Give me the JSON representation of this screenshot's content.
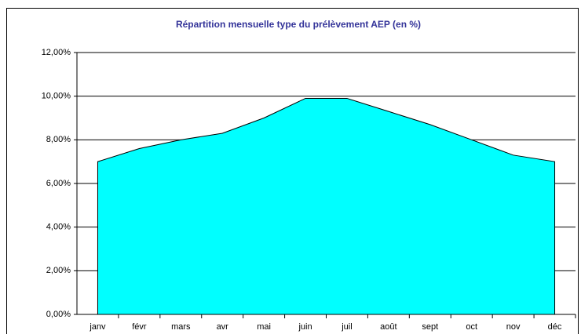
{
  "chart_data": {
    "type": "area",
    "title": "Répartition mensuelle type du prélèvement AEP (en %)",
    "categories": [
      "janv",
      "févr",
      "mars",
      "avr",
      "mai",
      "juin",
      "juil",
      "août",
      "sept",
      "oct",
      "nov",
      "déc"
    ],
    "values": [
      7.0,
      7.6,
      8.0,
      8.3,
      9.0,
      9.9,
      9.9,
      9.3,
      8.7,
      8.0,
      7.3,
      7.0
    ],
    "color": "#00ffff",
    "ylim": [
      0,
      12
    ],
    "yticks": [
      {
        "value": 0,
        "label": "0,00%"
      },
      {
        "value": 2,
        "label": "2,00%"
      },
      {
        "value": 4,
        "label": "4,00%"
      },
      {
        "value": 6,
        "label": "6,00%"
      },
      {
        "value": 8,
        "label": "8,00%"
      },
      {
        "value": 10,
        "label": "10,00%"
      },
      {
        "value": 12,
        "label": "12,00%"
      }
    ],
    "grid": true
  }
}
